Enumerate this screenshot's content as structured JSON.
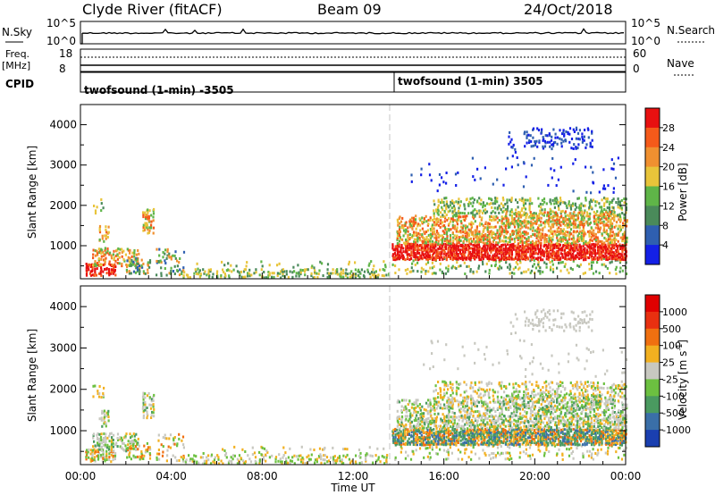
{
  "header": {
    "title": "Clyde River (fitACF)",
    "beam": "Beam 09",
    "date": "24/Oct/2018"
  },
  "summary": {
    "nsky_label": "N.Sky",
    "nsky_ticks": [
      "10^5",
      "10^0"
    ],
    "nsearch_label": "N.Search",
    "nsearch_ticks": [
      "10^5",
      "10^0"
    ],
    "freq_label_1": "Freq.",
    "freq_label_2": "[MHz]",
    "freq_ticks": [
      "18",
      "8"
    ],
    "nave_label": "Nave",
    "nave_ticks": [
      "60",
      "0"
    ],
    "cpid_label": "CPID",
    "cpid_segments": [
      {
        "start_hour": 0,
        "label": "twofsound (1-min) -3505"
      },
      {
        "start_hour": 14,
        "label": "twofsound (1-min) 3505"
      }
    ]
  },
  "chart_data": [
    {
      "type": "heatmap",
      "name": "power",
      "xlabel": "Time UT",
      "ylabel": "Slant Range [km]",
      "xlim": [
        0,
        24
      ],
      "ylim": [
        180,
        4500
      ],
      "x_ticks": [
        "00:00",
        "04:00",
        "08:00",
        "12:00",
        "16:00",
        "20:00",
        "00:00"
      ],
      "y_ticks": [
        "1000",
        "2000",
        "3000",
        "4000"
      ],
      "colorbar_label": "Power [dB]",
      "colorbar_ticks": [
        "4",
        "8",
        "12",
        "16",
        "20",
        "24",
        "28"
      ],
      "colorbar_colors": [
        "#1420e6",
        "#2f5fb0",
        "#4a8a5a",
        "#5fb548",
        "#e8c43a",
        "#f09030",
        "#f55a1a",
        "#e81010"
      ],
      "mode_change_hour": 14
    },
    {
      "type": "heatmap",
      "name": "velocity",
      "xlabel": "Time UT",
      "ylabel": "Slant Range [km]",
      "xlim": [
        0,
        24
      ],
      "ylim": [
        180,
        4500
      ],
      "x_ticks": [
        "00:00",
        "04:00",
        "08:00",
        "12:00",
        "16:00",
        "20:00",
        "00:00"
      ],
      "y_ticks": [
        "1000",
        "2000",
        "3000",
        "4000"
      ],
      "colorbar_label": "Velocity [m s",
      "colorbar_label_sup": "-1",
      "colorbar_label_end": "]",
      "colorbar_ticks": [
        "1000",
        "500",
        "100",
        "25",
        "-25",
        "-100",
        "-500",
        "-1000"
      ],
      "colorbar_colors": [
        "#1a3fb0",
        "#3a6fa8",
        "#4a9a60",
        "#6cc040",
        "#c8c8c0",
        "#f2b020",
        "#f07010",
        "#e83010",
        "#e00000"
      ],
      "mode_change_hour": 14
    }
  ],
  "bottom_axis": {
    "ticks": [
      "00:00",
      "04:00",
      "08:00",
      "12:00",
      "16:00",
      "20:00",
      "00:00"
    ],
    "label": "Time UT"
  }
}
